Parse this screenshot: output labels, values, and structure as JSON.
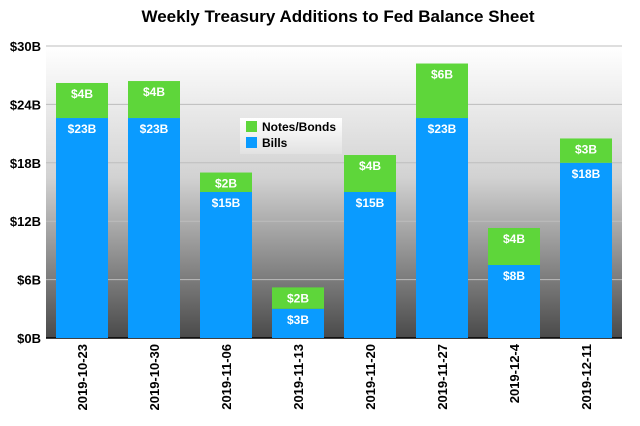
{
  "chart_data": {
    "type": "bar",
    "stacked": true,
    "title": "Weekly Treasury Additions to Fed Balance Sheet",
    "categories": [
      "2019-10-23",
      "2019-10-30",
      "2019-11-06",
      "2019-11-13",
      "2019-11-20",
      "2019-11-27",
      "2019-12-4",
      "2019-12-11"
    ],
    "series": [
      {
        "name": "Bills",
        "color": "#0a9bff",
        "values": [
          22.6,
          22.6,
          15.0,
          3.0,
          15.0,
          22.6,
          7.5,
          18.0
        ],
        "labels": [
          "$23B",
          "$23B",
          "$15B",
          "$3B",
          "$15B",
          "$23B",
          "$8B",
          "$18B"
        ]
      },
      {
        "name": "Notes/Bonds",
        "color": "#5ed63a",
        "values": [
          3.6,
          3.8,
          2.0,
          2.2,
          3.8,
          5.6,
          3.8,
          2.5
        ],
        "labels": [
          "$4B",
          "$4B",
          "$2B",
          "$2B",
          "$4B",
          "$6B",
          "$4B",
          "$3B"
        ]
      }
    ],
    "ylim": [
      0,
      30
    ],
    "yticks": [
      0,
      6,
      12,
      18,
      24,
      30
    ],
    "ytick_labels": [
      "$0B",
      "$6B",
      "$12B",
      "$18B",
      "$24B",
      "$30B"
    ],
    "xlabel": "",
    "ylabel": "",
    "grid": true,
    "legend": [
      "Notes/Bonds",
      "Bills"
    ],
    "legend_position": "inside-upper-left"
  }
}
